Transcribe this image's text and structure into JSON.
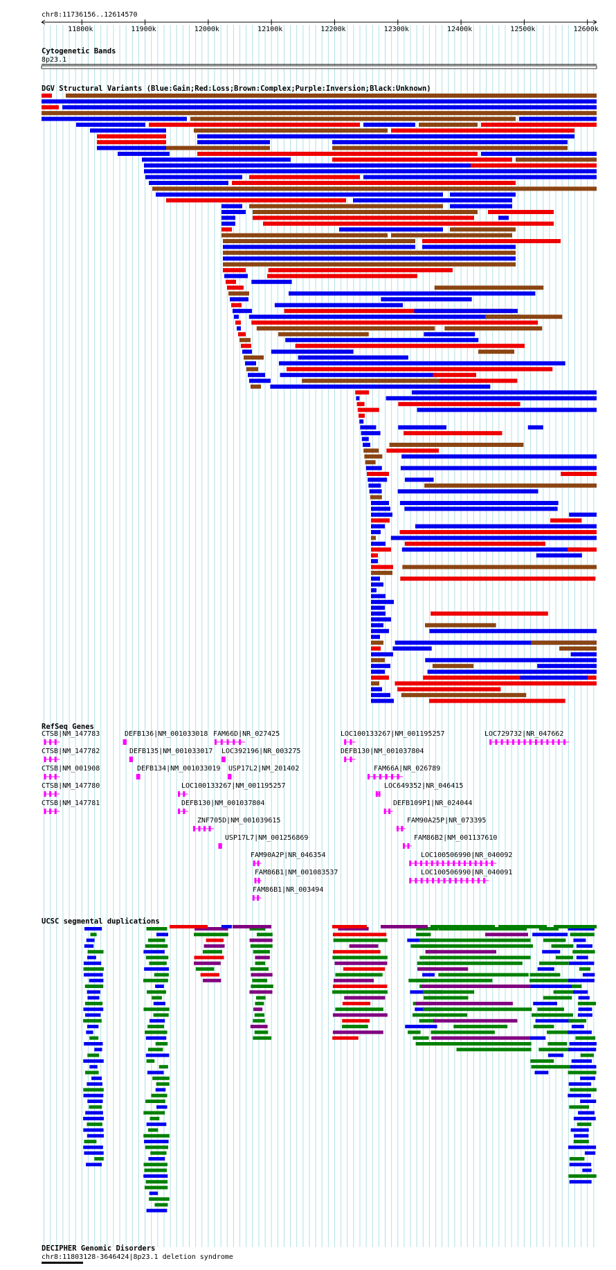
{
  "region": {
    "label": "chr8:11736156..12614570",
    "start": 11736156,
    "end": 12614570,
    "ticks": [
      "11800k",
      "11900k",
      "12000k",
      "12100k",
      "12200k",
      "12300k",
      "12400k",
      "12500k",
      "12600k"
    ],
    "tick_values": [
      11800000,
      11900000,
      12000000,
      12100000,
      12200000,
      12300000,
      12400000,
      12500000,
      12600000
    ]
  },
  "colors": {
    "gain": "#0000ee",
    "loss": "#ee0000",
    "complex": "#8b4513",
    "inversion": "#800080",
    "unknown": "#000000",
    "gene": "#ff00ff",
    "segdup_green": "#008000",
    "grid": "#b0e0e6"
  },
  "tracks": {
    "cyto": {
      "title": "Cytogenetic Bands",
      "band": "8p23.1"
    },
    "dgv": {
      "title": "DGV Structural Variants (Blue:Gain;Red:Loss;Brown:Complex;Purple:Inversion;Black:Unknown)"
    },
    "refseq": {
      "title": "RefSeq Genes",
      "genes": [
        {
          "label": "CTSB|NM_147783",
          "start": 11740000,
          "end": 11765000
        },
        {
          "label": "CTSB|NM_147782",
          "start": 11740000,
          "end": 11765000
        },
        {
          "label": "CTSB|NM_001908",
          "start": 11740000,
          "end": 11765000
        },
        {
          "label": "CTSB|NM_147780",
          "start": 11740000,
          "end": 11765000
        },
        {
          "label": "CTSB|NM_147781",
          "start": 11740000,
          "end": 11765000
        },
        {
          "label": "DEFB136|NM_001033018",
          "start": 11865000,
          "end": 11870000
        },
        {
          "label": "DEFB135|NM_001033017",
          "start": 11875000,
          "end": 11880000
        },
        {
          "label": "DEFB134|NM_001033019",
          "start": 11886000,
          "end": 11892000
        },
        {
          "label": "FAM66D|NR_027425",
          "start": 12010000,
          "end": 12058000
        },
        {
          "label": "LOC392196|NR_003275",
          "start": 12021000,
          "end": 12027000
        },
        {
          "label": "USP17L2|NM_201402",
          "start": 12031000,
          "end": 12036000
        },
        {
          "label": "LOC100133267|NM_001195257",
          "start": 11952000,
          "end": 11968000
        },
        {
          "label": "DEFB130|NM_001037804",
          "start": 11952000,
          "end": 11968000
        },
        {
          "label": "ZNF705D|NM_001039615",
          "start": 11976000,
          "end": 12009000
        },
        {
          "label": "USP17L7|NM_001256869",
          "start": 12016000,
          "end": 12021000
        },
        {
          "label": "FAM90A2P|NR_046354",
          "start": 12071000,
          "end": 12084000
        },
        {
          "label": "FAM86B1|NM_001083537",
          "start": 12073000,
          "end": 12084000
        },
        {
          "label": "FAM86B1|NR_003494",
          "start": 12070000,
          "end": 12084000
        },
        {
          "label": "LOC100133267|NM_001195257",
          "start": 12215000,
          "end": 12233000
        },
        {
          "label": "DEFB130|NM_001037804",
          "start": 12215000,
          "end": 12233000
        },
        {
          "label": "FAM66A|NR_026789",
          "start": 12252000,
          "end": 12308000
        },
        {
          "label": "LOC649352|NR_046415",
          "start": 12265000,
          "end": 12273000
        },
        {
          "label": "DEFB109P1|NR_024044",
          "start": 12278000,
          "end": 12292000
        },
        {
          "label": "FAM90A25P|NR_073395",
          "start": 12298000,
          "end": 12312000
        },
        {
          "label": "FAM86B2|NM_001137610",
          "start": 12308000,
          "end": 12322000
        },
        {
          "label": "LOC100506990|NR_040092",
          "start": 12318000,
          "end": 12456000
        },
        {
          "label": "LOC100506990|NR_040091",
          "start": 12318000,
          "end": 12444000
        },
        {
          "label": "LOC729732|NR_047662",
          "start": 12445000,
          "end": 12571000
        }
      ]
    },
    "segdup": {
      "title": "UCSC segmental duplications"
    },
    "decipher": {
      "title": "DECIPHER Genomic Disorders",
      "feature": "chr8:11803128-3646424|8p23.1 deletion syndrome"
    }
  }
}
